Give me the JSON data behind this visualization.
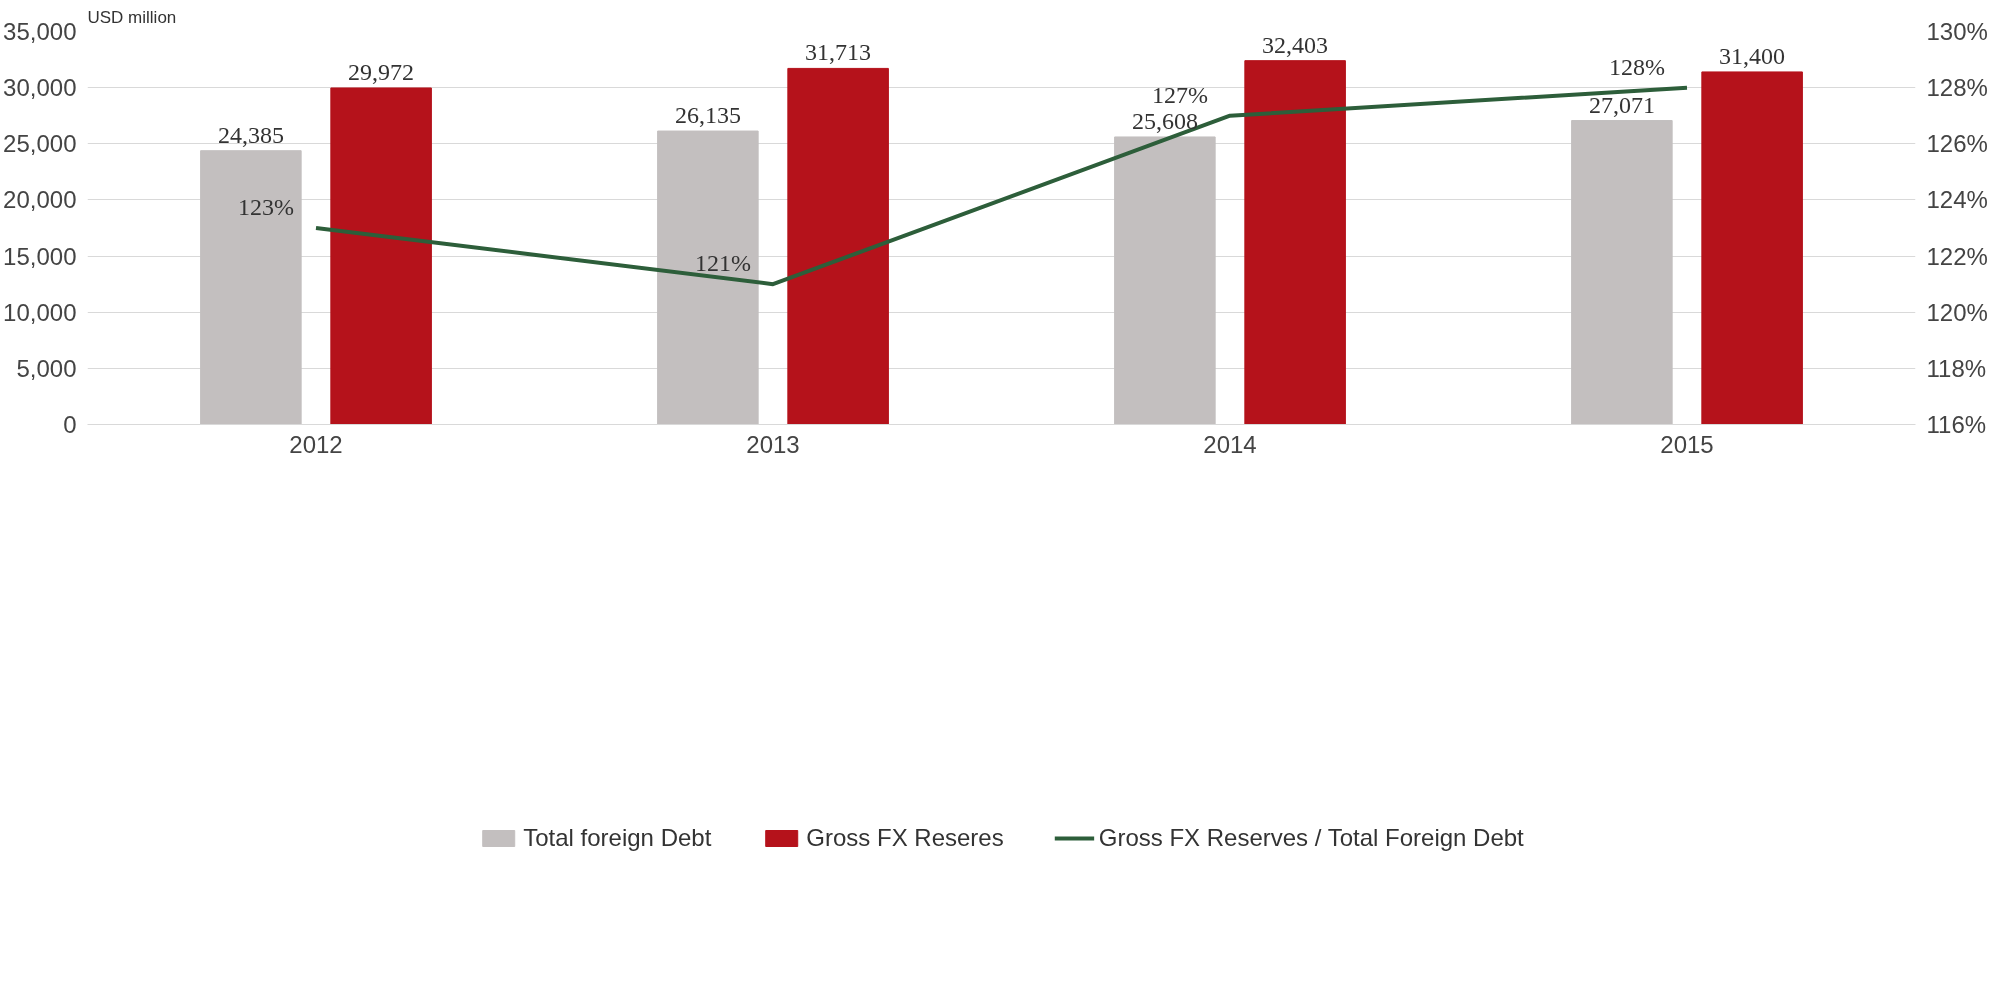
{
  "chart_data": {
    "type": "bar",
    "ylabel": "USD million",
    "categories": [
      "2012",
      "2013",
      "2014",
      "2015"
    ],
    "series": [
      {
        "name": "Total foreign Debt",
        "color": "#c3bfbf",
        "values": [
          24385,
          26135,
          25608,
          27071
        ],
        "value_labels": [
          "24,385",
          "26,135",
          "25,608",
          "27,071"
        ]
      },
      {
        "name": "Gross FX Reseres",
        "color": "#b5121b",
        "values": [
          29972,
          31713,
          32403,
          31400
        ],
        "value_labels": [
          "29,972",
          "31,713",
          "32,403",
          "31,400"
        ]
      },
      {
        "name": "Gross FX Reserves / Total Foreign Debt",
        "type": "line",
        "axis": "y2",
        "color": "#2d5e3a",
        "values": [
          123,
          121,
          127,
          128
        ],
        "value_labels": [
          "123%",
          "121%",
          "127%",
          "128%"
        ]
      }
    ],
    "ylim": [
      0,
      35000
    ],
    "yticks": [
      {
        "value": 0,
        "label": "0"
      },
      {
        "value": 5000,
        "label": "5,000"
      },
      {
        "value": 10000,
        "label": "10,000"
      },
      {
        "value": 15000,
        "label": "15,000"
      },
      {
        "value": 20000,
        "label": "20,000"
      },
      {
        "value": 25000,
        "label": "25,000"
      },
      {
        "value": 30000,
        "label": "30,000"
      },
      {
        "value": 35000,
        "label": "35,000"
      }
    ],
    "y2lim": [
      116,
      130
    ],
    "y2ticks": [
      {
        "value": 116,
        "label": "116%"
      },
      {
        "value": 118,
        "label": "118%"
      },
      {
        "value": 120,
        "label": "120%"
      },
      {
        "value": 122,
        "label": "122%"
      },
      {
        "value": 124,
        "label": "124%"
      },
      {
        "value": 126,
        "label": "126%"
      },
      {
        "value": 128,
        "label": "128%"
      },
      {
        "value": 130,
        "label": "130%"
      }
    ],
    "grid": "y",
    "legend": "bottom"
  }
}
